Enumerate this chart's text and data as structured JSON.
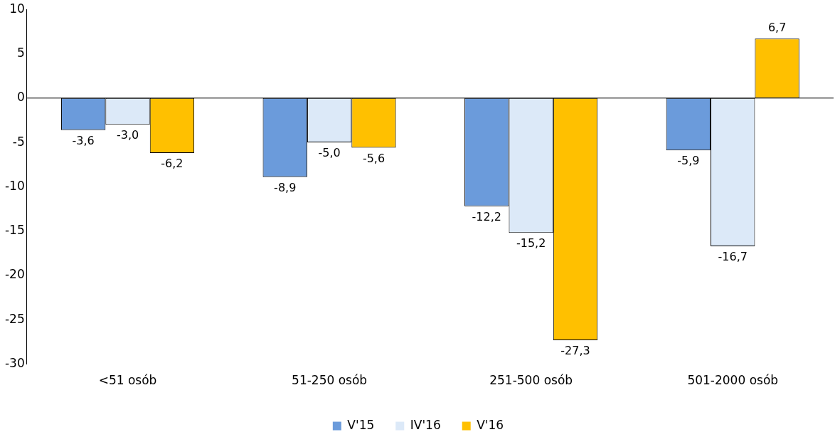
{
  "chart_data": {
    "type": "bar",
    "categories": [
      "<51 osób",
      "51-250 osób",
      "251-500 osób",
      "501-2000 osób"
    ],
    "series": [
      {
        "name": "V'15",
        "color": "#6b9bdb",
        "values": [
          -3.6,
          -8.9,
          -12.2,
          -5.9
        ],
        "value_labels": [
          "-3,6",
          "-8,9",
          "-12,2",
          "-5,9"
        ]
      },
      {
        "name": "IV'16",
        "color": "#dce9f8",
        "values": [
          -3.0,
          -5.0,
          -15.2,
          -16.7
        ],
        "value_labels": [
          "-3,0",
          "-5,0",
          "-15,2",
          "-16,7"
        ]
      },
      {
        "name": "V'16",
        "color": "#ffc000",
        "values": [
          -6.2,
          -5.6,
          -27.3,
          6.7
        ],
        "value_labels": [
          "-6,2",
          "-5,6",
          "-27,3",
          "6,7"
        ]
      }
    ],
    "ylim": [
      -30,
      10
    ],
    "yticks": [
      -30,
      -25,
      -20,
      -15,
      -10,
      -5,
      0,
      5,
      10
    ],
    "grid": false,
    "legend": "bottom",
    "ref_lines": [
      {
        "axis": "y",
        "value": 0,
        "color": "#000000"
      }
    ]
  }
}
